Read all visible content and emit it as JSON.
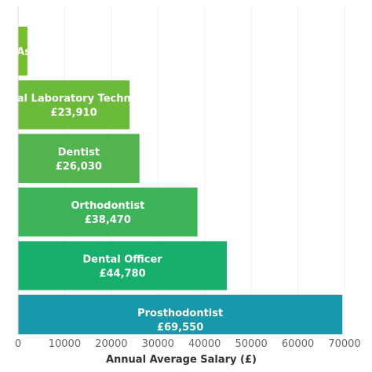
{
  "chart_data": {
    "type": "bar",
    "orientation": "horizontal",
    "categories": [
      "Dental Assistant",
      "Dental Laboratory Technician",
      "Dentist",
      "Orthodontist",
      "Dental Officer",
      "Prosthodontist"
    ],
    "values": [
      2000,
      23910,
      26030,
      38470,
      44780,
      69550
    ],
    "value_labels": [
      "",
      "£23,910",
      "£26,030",
      "£38,470",
      "£44,780",
      "£69,550"
    ],
    "colors": [
      "#77bd2d",
      "#6cba3b",
      "#52b44e",
      "#3db45a",
      "#16b06c",
      "#1798ab"
    ],
    "title": "",
    "xlabel": "Annual Average Salary (£)",
    "ylabel": "",
    "xlim": [
      0,
      70000
    ],
    "xticks": [
      0,
      10000,
      20000,
      30000,
      40000,
      50000,
      60000,
      70000
    ],
    "grid": true,
    "legend": "none"
  }
}
